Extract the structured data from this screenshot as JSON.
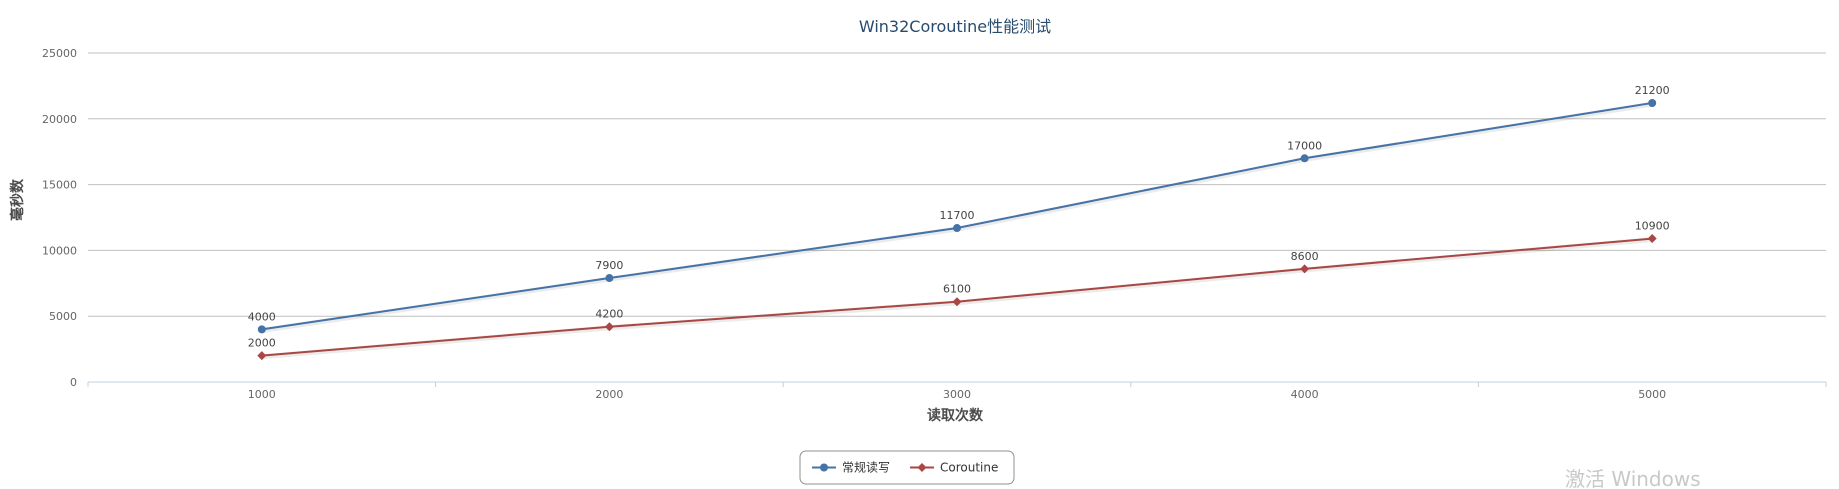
{
  "chart_data": {
    "type": "line",
    "title": "Win32Coroutine性能测试",
    "xlabel": "读取次数",
    "ylabel": "毫秒数",
    "categories": [
      "1000",
      "2000",
      "3000",
      "4000",
      "5000"
    ],
    "ylim": [
      0,
      25000
    ],
    "yticks": [
      0,
      5000,
      10000,
      15000,
      20000,
      25000
    ],
    "grid": true,
    "legend": "bottom-center",
    "series": [
      {
        "name": "常规读写",
        "values": [
          4000,
          7900,
          11700,
          17000,
          21200
        ],
        "color": "#4572a7",
        "marker": "circle"
      },
      {
        "name": "Coroutine",
        "values": [
          2000,
          4200,
          6100,
          8600,
          10900
        ],
        "color": "#aa4643",
        "marker": "diamond"
      }
    ]
  },
  "watermark": "激活 Windows"
}
